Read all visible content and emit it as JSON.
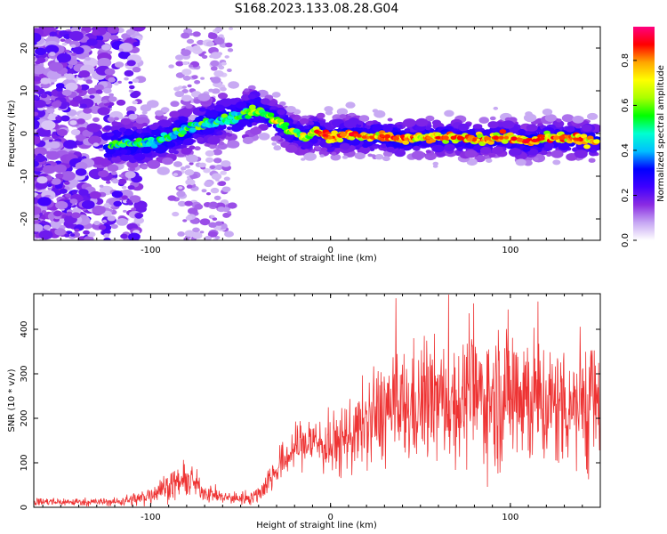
{
  "figure": {
    "title": "S168.2023.133.08.28.G04"
  },
  "chart_data": [
    {
      "type": "heatmap",
      "xlabel": "Height of straight line (km)",
      "ylabel": "Frequency (Hz)",
      "xlim": [
        -165,
        150
      ],
      "ylim": [
        -25,
        25
      ],
      "xticks": [
        -100,
        0,
        100
      ],
      "yticks": [
        -20,
        -10,
        0,
        10,
        20
      ],
      "colorbar": {
        "label": "Normalized spectral amplitude",
        "range": [
          0,
          0.95
        ],
        "ticks": [
          0.0,
          0.2,
          0.4,
          0.6,
          0.8
        ],
        "colormap": [
          "#ffffff",
          "#c6a6f3",
          "#8a2be2",
          "#3f00ff",
          "#0000ff",
          "#00bfff",
          "#00ffd0",
          "#00ff00",
          "#aaff00",
          "#ffff00",
          "#ffa500",
          "#ff0000",
          "#ff0080"
        ]
      },
      "ridge": {
        "x": [
          -120,
          -110,
          -100,
          -90,
          -80,
          -70,
          -60,
          -50,
          -42,
          -35,
          -28,
          -22,
          -15,
          -8,
          0,
          10,
          20,
          30,
          40,
          50,
          60,
          70,
          80,
          90,
          100,
          110,
          120,
          130,
          140,
          148
        ],
        "y": [
          -2.5,
          -2.5,
          -2.0,
          -1.0,
          1.0,
          2.5,
          3.5,
          4.0,
          5.5,
          4.5,
          2.5,
          0.5,
          -1.0,
          0.5,
          -1.0,
          0.0,
          -1.0,
          -0.5,
          -1.5,
          -1.0,
          -1.0,
          -1.0,
          -1.5,
          -1.0,
          -1.0,
          -2.0,
          -1.0,
          -1.0,
          -1.5,
          -1.5
        ]
      }
    },
    {
      "type": "line",
      "xlabel": "Height of straight line (km)",
      "ylabel": "SNR (10 * v/v)",
      "xlim": [
        -165,
        150
      ],
      "ylim": [
        0,
        480
      ],
      "xticks": [
        -100,
        0,
        100
      ],
      "yticks": [
        0,
        100,
        200,
        300,
        400
      ],
      "series": [
        {
          "color": "#ee3333",
          "envelope_x": [
            -165,
            -140,
            -120,
            -105,
            -95,
            -85,
            -78,
            -70,
            -60,
            -50,
            -42,
            -38,
            -32,
            -25,
            -18,
            -10,
            0,
            10,
            20,
            30,
            40,
            50,
            60,
            70,
            80,
            90,
            100,
            105,
            110,
            115,
            120,
            130,
            140,
            150
          ],
          "envelope_y": [
            12,
            12,
            12,
            20,
            40,
            55,
            60,
            35,
            22,
            20,
            25,
            40,
            75,
            110,
            140,
            150,
            135,
            160,
            185,
            220,
            215,
            235,
            240,
            235,
            250,
            245,
            255,
            280,
            250,
            240,
            225,
            235,
            240,
            230
          ],
          "spread_y": [
            5,
            5,
            5,
            10,
            15,
            20,
            20,
            12,
            8,
            8,
            10,
            15,
            20,
            25,
            30,
            35,
            40,
            45,
            55,
            70,
            75,
            75,
            75,
            75,
            80,
            85,
            95,
            100,
            95,
            85,
            80,
            80,
            90,
            90
          ]
        }
      ]
    }
  ]
}
